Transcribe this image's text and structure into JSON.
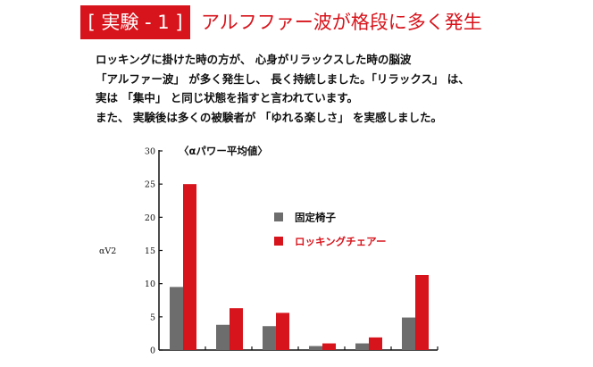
{
  "header": {
    "badge": "[ 実験 - 1 ]",
    "title": "アルフファー波が格段に多く発生"
  },
  "paragraph": [
    "ロッキングに掛けた時の方が、 心身がリラックスした時の脳波",
    "「アルファー波」 が多く発生し、 長く持続しました。「リラックス」 は、",
    "実は 「集中」 と同じ状態を指すと言われています。",
    "また、 実験後は多くの被験者が 「ゆれる楽しさ」 を実感しました。"
  ],
  "chart_data": {
    "type": "bar",
    "title": "〈αパワー平均値〉",
    "ylabel": "αV2",
    "xlabel": "",
    "ylim": [
      0,
      30
    ],
    "yticks": [
      0,
      5,
      10,
      15,
      20,
      25,
      30
    ],
    "categories": [
      "",
      "",
      "",
      "",
      "",
      ""
    ],
    "legend_position": "right",
    "grid": false,
    "series": [
      {
        "name": "固定椅子",
        "color": "#6d6d6d",
        "values": [
          9.5,
          3.8,
          3.6,
          0.6,
          1.0,
          4.9
        ]
      },
      {
        "name": "ロッキングチェアー",
        "color": "#d7141c",
        "values": [
          25.0,
          6.3,
          5.6,
          1.0,
          1.9,
          11.3
        ]
      }
    ]
  }
}
